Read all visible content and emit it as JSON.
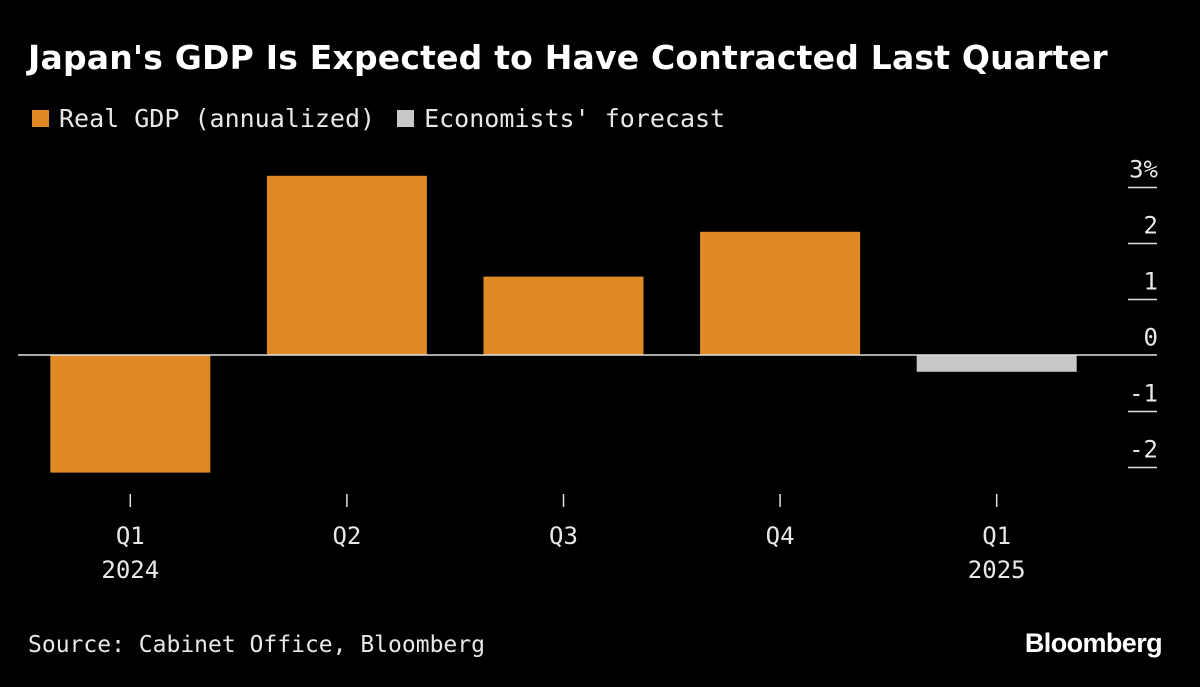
{
  "colors": {
    "background": "#000000",
    "actual": "#df8a25",
    "forecast": "#c8c8c8",
    "text": "#e8e8e8",
    "axis": "#e0e0e0"
  },
  "title": "Japan's GDP Is Expected to Have Contracted Last Quarter",
  "legend": {
    "actual_label": "Real GDP (annualized)",
    "forecast_label": "Economists' forecast"
  },
  "source": "Source: Cabinet Office, Bloomberg",
  "brand": "Bloomberg",
  "chart_data": {
    "type": "bar",
    "title": "Japan's GDP Is Expected to Have Contracted Last Quarter",
    "categories": [
      {
        "line1": "Q1",
        "line2": "2024"
      },
      {
        "line1": "Q2",
        "line2": ""
      },
      {
        "line1": "Q3",
        "line2": ""
      },
      {
        "line1": "Q4",
        "line2": ""
      },
      {
        "line1": "Q1",
        "line2": "2025"
      }
    ],
    "series": [
      {
        "name": "Real GDP (annualized)",
        "kind": "actual",
        "values": [
          -2.1,
          3.2,
          1.4,
          2.2,
          null
        ]
      },
      {
        "name": "Economists' forecast",
        "kind": "forecast",
        "values": [
          null,
          null,
          null,
          null,
          -0.3
        ]
      }
    ],
    "ylim": [
      -2,
      3
    ],
    "yticks": [
      3,
      2,
      1,
      0,
      -1,
      -2
    ],
    "ytick_labels": [
      "3%",
      "2",
      "1",
      "0",
      "-1",
      "-2"
    ],
    "y_axis_position": "right",
    "xlabel": "",
    "ylabel": "",
    "grid": false
  }
}
